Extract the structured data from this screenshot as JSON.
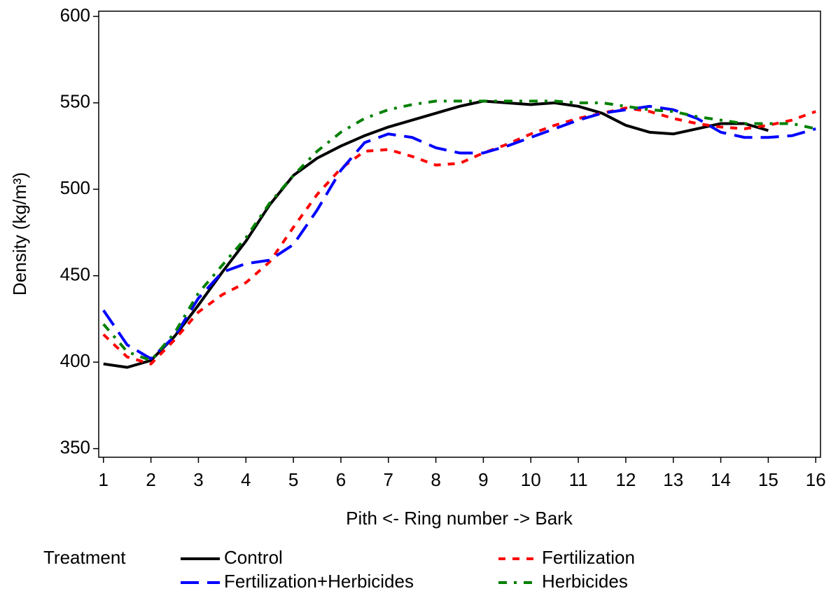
{
  "chart_data": {
    "type": "line",
    "xlabel": "Pith <- Ring number -> Bark",
    "ylabel": "Density (kg/m³)",
    "legend_title": "Treatment",
    "x": [
      1,
      1.5,
      2,
      2.5,
      3,
      3.5,
      4,
      4.5,
      5,
      5.5,
      6,
      6.5,
      7,
      7.5,
      8,
      8.5,
      9,
      9.5,
      10,
      10.5,
      11,
      11.5,
      12,
      12.5,
      13,
      13.5,
      14,
      14.5,
      15,
      15.5,
      16
    ],
    "series": [
      {
        "name": "Control",
        "color": "#000000",
        "dash": "none",
        "values": [
          399,
          397,
          401,
          415,
          433,
          452,
          470,
          491,
          508,
          518,
          525,
          531,
          536,
          540,
          544,
          548,
          551,
          550,
          549,
          550,
          548,
          544,
          537,
          533,
          532,
          535,
          538,
          538,
          534,
          null,
          null
        ]
      },
      {
        "name": "Fertilization",
        "color": "#ff0000",
        "dash": "10 10",
        "values": [
          416,
          403,
          399,
          413,
          429,
          439,
          446,
          458,
          478,
          497,
          512,
          522,
          523,
          519,
          514,
          515,
          521,
          526,
          532,
          537,
          541,
          544,
          547,
          545,
          541,
          538,
          536,
          535,
          537,
          540,
          545
        ]
      },
      {
        "name": "Fertilization+Herbicides",
        "color": "#0000ff",
        "dash": "26 12",
        "values": [
          430,
          410,
          402,
          415,
          437,
          452,
          457,
          459,
          468,
          488,
          511,
          527,
          532,
          530,
          524,
          521,
          521,
          525,
          530,
          535,
          540,
          544,
          546,
          548,
          546,
          541,
          533,
          530,
          530,
          531,
          535
        ]
      },
      {
        "name": "Herbicides",
        "color": "#008000",
        "dash": "12 10 4 10",
        "values": [
          422,
          406,
          401,
          417,
          440,
          456,
          472,
          492,
          508,
          522,
          533,
          541,
          546,
          549,
          551,
          551,
          551,
          551,
          551,
          551,
          550,
          550,
          548,
          546,
          545,
          542,
          540,
          538,
          538,
          538,
          535
        ]
      }
    ],
    "xlim": [
      0.9,
      16.1
    ],
    "xticks": [
      1,
      2,
      3,
      4,
      5,
      6,
      7,
      8,
      9,
      10,
      11,
      12,
      13,
      14,
      15,
      16
    ],
    "ylim": [
      345,
      603
    ],
    "yticks": [
      350,
      400,
      450,
      500,
      550,
      600
    ]
  }
}
